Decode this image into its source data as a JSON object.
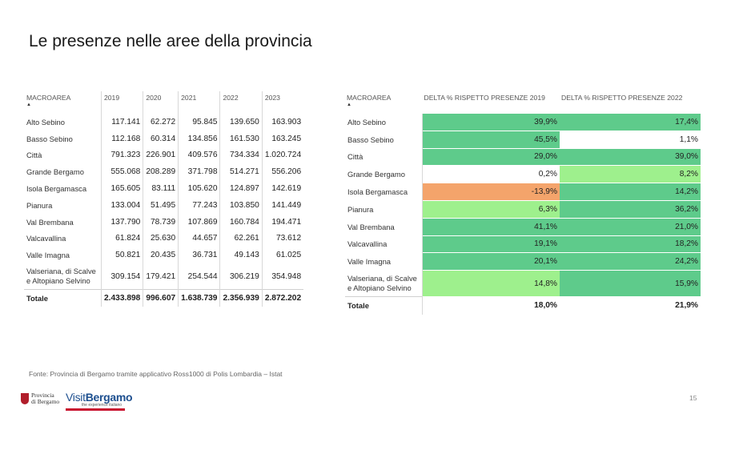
{
  "title": "Le presenze nelle aree della provincia",
  "left_table": {
    "area_header": "MACROAREA",
    "years": [
      "2019",
      "2020",
      "2021",
      "2022",
      "2023"
    ],
    "rows": [
      {
        "area": "Alto Sebino",
        "values": [
          "117.141",
          "62.272",
          "95.845",
          "139.650",
          "163.903"
        ]
      },
      {
        "area": "Basso Sebino",
        "values": [
          "112.168",
          "60.314",
          "134.856",
          "161.530",
          "163.245"
        ]
      },
      {
        "area": "Città",
        "values": [
          "791.323",
          "226.901",
          "409.576",
          "734.334",
          "1.020.724"
        ]
      },
      {
        "area": "Grande Bergamo",
        "values": [
          "555.068",
          "208.289",
          "371.798",
          "514.271",
          "556.206"
        ]
      },
      {
        "area": "Isola Bergamasca",
        "values": [
          "165.605",
          "83.111",
          "105.620",
          "124.897",
          "142.619"
        ]
      },
      {
        "area": "Pianura",
        "values": [
          "133.004",
          "51.495",
          "77.243",
          "103.850",
          "141.449"
        ]
      },
      {
        "area": "Val Brembana",
        "values": [
          "137.790",
          "78.739",
          "107.869",
          "160.784",
          "194.471"
        ]
      },
      {
        "area": "Valcavallina",
        "values": [
          "61.824",
          "25.630",
          "44.657",
          "62.261",
          "73.612"
        ]
      },
      {
        "area": "Valle Imagna",
        "values": [
          "50.821",
          "20.435",
          "36.731",
          "49.143",
          "61.025"
        ]
      },
      {
        "area": "Valseriana, di Scalve e Altopiano Selvino",
        "values": [
          "309.154",
          "179.421",
          "254.544",
          "306.219",
          "354.948"
        ]
      }
    ],
    "total": {
      "area": "Totale",
      "values": [
        "2.433.898",
        "996.607",
        "1.638.739",
        "2.356.939",
        "2.872.202"
      ]
    }
  },
  "right_table": {
    "area_header": "MACROAREA",
    "col1_header": "DELTA % RISPETTO PRESENZE 2019",
    "col2_header": "DELTA % RISPETTO PRESENZE 2022",
    "rows": [
      {
        "area": "Alto Sebino",
        "d2019": "39,9%",
        "c2019": "#5ecb8b",
        "d2022": "17,4%",
        "c2022": "#5ecb8b"
      },
      {
        "area": "Basso Sebino",
        "d2019": "45,5%",
        "c2019": "#5ecb8b",
        "d2022": "1,1%",
        "c2022": "#ffffff"
      },
      {
        "area": "Città",
        "d2019": "29,0%",
        "c2019": "#5ecb8b",
        "d2022": "39,0%",
        "c2022": "#5ecb8b"
      },
      {
        "area": "Grande Bergamo",
        "d2019": "0,2%",
        "c2019": "#ffffff",
        "d2022": "8,2%",
        "c2022": "#9ef08d"
      },
      {
        "area": "Isola Bergamasca",
        "d2019": "-13,9%",
        "c2019": "#f4a46b",
        "d2022": "14,2%",
        "c2022": "#5ecb8b"
      },
      {
        "area": "Pianura",
        "d2019": "6,3%",
        "c2019": "#9ef08d",
        "d2022": "36,2%",
        "c2022": "#5ecb8b"
      },
      {
        "area": "Val Brembana",
        "d2019": "41,1%",
        "c2019": "#5ecb8b",
        "d2022": "21,0%",
        "c2022": "#5ecb8b"
      },
      {
        "area": "Valcavallina",
        "d2019": "19,1%",
        "c2019": "#5ecb8b",
        "d2022": "18,2%",
        "c2022": "#5ecb8b"
      },
      {
        "area": "Valle Imagna",
        "d2019": "20,1%",
        "c2019": "#5ecb8b",
        "d2022": "24,2%",
        "c2022": "#5ecb8b"
      },
      {
        "area": "Valseriana, di Scalve e Altopiano Selvino",
        "d2019": "14,8%",
        "c2019": "#9ef08d",
        "d2022": "15,9%",
        "c2022": "#5ecb8b"
      }
    ],
    "total": {
      "area": "Totale",
      "d2019": "18,0%",
      "d2022": "21,9%"
    }
  },
  "source": "Fonte: Provincia di Bergamo tramite applicativo Ross1000 di Polis Lombardia – Istat",
  "logo_provincia": {
    "line1": "Provincia",
    "line2": "di Bergamo"
  },
  "logo_visit": {
    "part1": "Visit",
    "part2": "Bergamo",
    "tagline": "the experience italiano"
  },
  "page_number": "15"
}
